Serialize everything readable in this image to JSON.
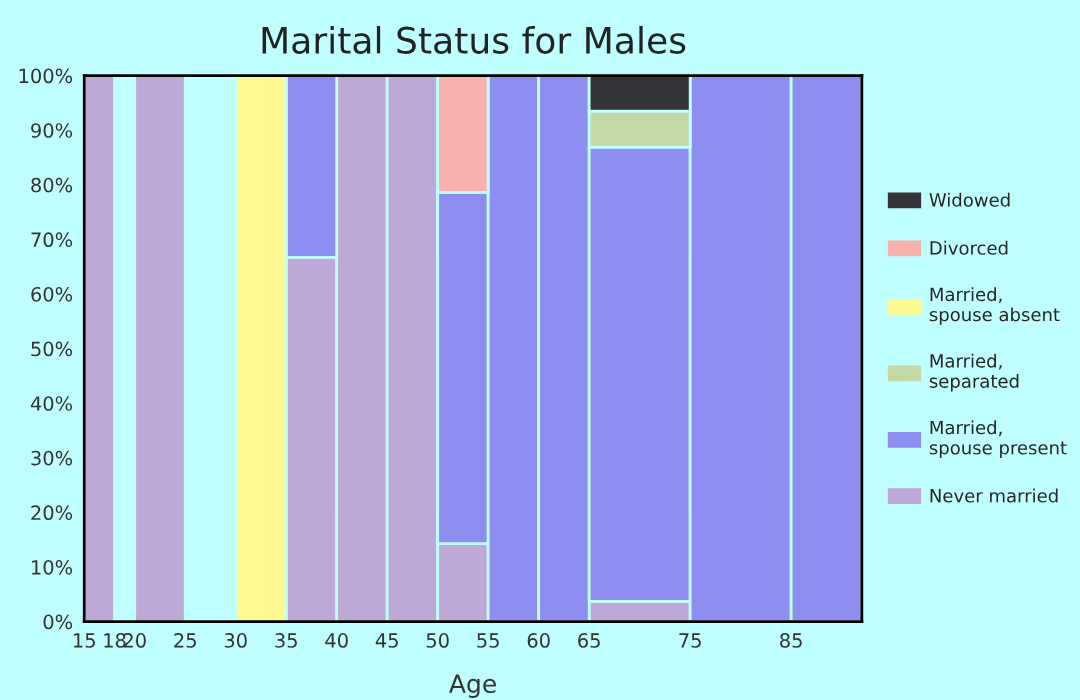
{
  "chart_data": {
    "type": "bar",
    "title": "Marital Status for Males",
    "xlabel": "Age",
    "x": [
      16.5,
      19,
      22.5,
      27.5,
      32.5,
      37.5,
      42.5,
      47.5,
      52.5,
      57.5,
      62.5,
      70,
      80,
      88.5
    ],
    "stacked": true,
    "series": [
      {
        "name": "Never married",
        "color": "#bda8d8",
        "values": [
          100,
          null,
          100,
          null,
          null,
          66.7,
          100,
          100,
          14.3,
          null,
          null,
          3.7,
          null,
          null
        ]
      },
      {
        "name": "Married, spouse present",
        "color": "#8e8ef0",
        "values": [
          null,
          null,
          null,
          null,
          null,
          33.3,
          null,
          null,
          64.3,
          100,
          100,
          83.2,
          100,
          100
        ]
      },
      {
        "name": "Married, separated",
        "color": "#c2d9a5",
        "values": [
          null,
          null,
          null,
          null,
          null,
          null,
          null,
          null,
          null,
          null,
          null,
          6.6,
          null,
          null
        ]
      },
      {
        "name": "Married, spouse absent",
        "color": "#fefa91",
        "values": [
          null,
          null,
          null,
          null,
          100,
          null,
          null,
          null,
          null,
          null,
          null,
          null,
          null,
          null
        ]
      },
      {
        "name": "Divorced",
        "color": "#f9b1ad",
        "values": [
          null,
          null,
          null,
          null,
          null,
          null,
          null,
          null,
          21.4,
          null,
          null,
          null,
          null,
          null
        ]
      },
      {
        "name": "Widowed",
        "color": "#333338",
        "values": [
          null,
          null,
          null,
          null,
          null,
          null,
          null,
          null,
          null,
          null,
          null,
          6.5,
          null,
          null
        ]
      }
    ],
    "xlim": [
      15,
      92
    ],
    "xticks": [
      15,
      18,
      20,
      25,
      30,
      35,
      40,
      45,
      50,
      55,
      60,
      65,
      75,
      85
    ],
    "ylim": [
      0,
      100
    ],
    "yticks": [
      {
        "value": 0,
        "label": "0%"
      },
      {
        "value": 10,
        "label": "10%"
      },
      {
        "value": 20,
        "label": "20%"
      },
      {
        "value": 30,
        "label": "30%"
      },
      {
        "value": 40,
        "label": "40%"
      },
      {
        "value": 50,
        "label": "50%"
      },
      {
        "value": 60,
        "label": "60%"
      },
      {
        "value": 70,
        "label": "70%"
      },
      {
        "value": 80,
        "label": "80%"
      },
      {
        "value": 90,
        "label": "90%"
      },
      {
        "value": 100,
        "label": "100%"
      }
    ],
    "grid": false,
    "legend": "right"
  }
}
